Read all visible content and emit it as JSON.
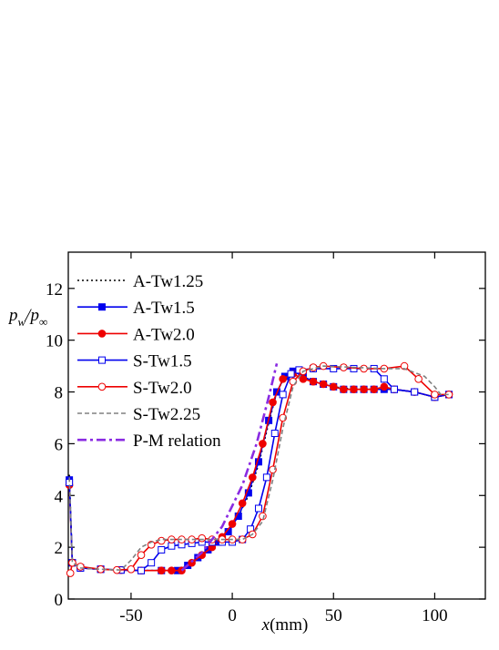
{
  "chart_data": {
    "type": "line",
    "x_label": [
      "x",
      "(mm)"
    ],
    "y_label": [
      "p",
      "w",
      "/p",
      "∞"
    ],
    "xlim": [
      -81,
      125
    ],
    "ylim": [
      0,
      13.4
    ],
    "xticks": [
      -50,
      0,
      50,
      100
    ],
    "yticks": [
      0,
      2,
      4,
      6,
      8,
      10,
      12
    ],
    "legend": "upper-left",
    "series": [
      {
        "name": "A-Tw1.25",
        "color": "#000000",
        "dash": "dot",
        "marker": null,
        "x": [
          -80.5,
          -79,
          -75,
          -65,
          -50,
          -35,
          -27,
          -22,
          -17,
          -12,
          -7,
          -2,
          3,
          8,
          13,
          18,
          22,
          26,
          30,
          35,
          40,
          50,
          60,
          70,
          80,
          90,
          100,
          107
        ],
        "values": [
          4.8,
          1.4,
          1.2,
          1.15,
          1.1,
          1.1,
          1.1,
          1.3,
          1.6,
          1.9,
          2.2,
          2.6,
          3.2,
          4.0,
          5.2,
          6.8,
          8.0,
          8.6,
          8.8,
          8.6,
          8.4,
          8.2,
          8.1,
          8.1,
          8.1,
          8.0,
          7.8,
          7.9
        ]
      },
      {
        "name": "A-Tw1.5",
        "color": "#0000ee",
        "dash": "solid",
        "marker": "square-filled",
        "x": [
          -80.5,
          -79,
          -75,
          -65,
          -55,
          -45,
          -35,
          -27,
          -22,
          -17,
          -12,
          -7,
          -2,
          3,
          8,
          13,
          18,
          22,
          26,
          30,
          35,
          40,
          45,
          50,
          55,
          60,
          65,
          70,
          75,
          80,
          90,
          100,
          107
        ],
        "values": [
          4.6,
          1.4,
          1.2,
          1.15,
          1.12,
          1.1,
          1.1,
          1.1,
          1.3,
          1.6,
          1.9,
          2.2,
          2.6,
          3.2,
          4.1,
          5.3,
          6.9,
          8.0,
          8.6,
          8.8,
          8.6,
          8.4,
          8.3,
          8.2,
          8.1,
          8.1,
          8.1,
          8.1,
          8.1,
          8.1,
          8.0,
          7.8,
          7.9
        ]
      },
      {
        "name": "A-Tw2.0",
        "color": "#ee0000",
        "dash": "solid",
        "marker": "circle-filled",
        "x": [
          -80.5,
          -79,
          -75,
          -65,
          -55,
          -45,
          -35,
          -30,
          -25,
          -20,
          -15,
          -10,
          -5,
          0,
          5,
          10,
          15,
          20,
          25,
          30,
          35,
          40,
          45,
          50,
          55,
          60,
          65,
          70,
          75,
          80,
          90,
          100,
          107
        ],
        "values": [
          4.4,
          1.4,
          1.2,
          1.15,
          1.12,
          1.1,
          1.1,
          1.1,
          1.1,
          1.4,
          1.7,
          2.0,
          2.4,
          2.9,
          3.7,
          4.7,
          6.0,
          7.6,
          8.5,
          8.7,
          8.5,
          8.4,
          8.3,
          8.2,
          8.1,
          8.1,
          8.1,
          8.1,
          8.2,
          8.1,
          8.0,
          7.8,
          7.9
        ]
      },
      {
        "name": "S-Tw1.5",
        "color": "#0000ee",
        "dash": "solid",
        "marker": "square-open",
        "x": [
          -80.5,
          -79,
          -75,
          -65,
          -55,
          -45,
          -40,
          -35,
          -30,
          -25,
          -20,
          -15,
          -10,
          -5,
          0,
          5,
          9,
          13,
          17,
          21,
          25,
          29,
          33,
          40,
          50,
          60,
          70,
          75,
          80,
          90,
          100,
          107
        ],
        "values": [
          4.5,
          1.4,
          1.2,
          1.15,
          1.12,
          1.1,
          1.4,
          1.9,
          2.05,
          2.1,
          2.15,
          2.2,
          2.2,
          2.2,
          2.2,
          2.3,
          2.7,
          3.5,
          4.7,
          6.4,
          7.9,
          8.7,
          8.85,
          8.9,
          8.9,
          8.9,
          8.9,
          8.5,
          8.1,
          8.0,
          7.8,
          7.9
        ]
      },
      {
        "name": "S-Tw2.0",
        "color": "#ee0000",
        "dash": "solid",
        "marker": "circle-open",
        "x": [
          -80,
          -79,
          -75,
          -65,
          -57,
          -50,
          -45,
          -40,
          -35,
          -30,
          -25,
          -20,
          -15,
          -10,
          -5,
          0,
          5,
          10,
          15,
          20,
          25,
          30,
          35,
          40,
          45,
          55,
          65,
          75,
          85,
          92,
          100,
          107
        ],
        "values": [
          1.0,
          1.4,
          1.25,
          1.15,
          1.12,
          1.15,
          1.7,
          2.1,
          2.25,
          2.3,
          2.3,
          2.3,
          2.35,
          2.3,
          2.3,
          2.3,
          2.3,
          2.5,
          3.2,
          5.0,
          7.0,
          8.4,
          8.8,
          8.95,
          9.0,
          8.95,
          8.9,
          8.9,
          9.0,
          8.5,
          7.9,
          7.9
        ]
      },
      {
        "name": "S-Tw2.25",
        "color": "#808080",
        "dash": "dash",
        "marker": null,
        "x": [
          -80.5,
          -79,
          -75,
          -65,
          -55,
          -50,
          -45,
          -40,
          -35,
          -20,
          -5,
          5,
          10,
          15,
          20,
          25,
          30,
          35,
          45,
          60,
          75,
          85,
          95,
          100,
          103,
          107
        ],
        "values": [
          4.7,
          1.4,
          1.2,
          1.15,
          1.12,
          1.5,
          2.0,
          2.2,
          2.3,
          2.3,
          2.3,
          2.3,
          2.5,
          3.0,
          4.6,
          6.6,
          8.2,
          8.8,
          9.0,
          8.95,
          8.9,
          8.9,
          8.6,
          8.2,
          7.9,
          7.9
        ]
      },
      {
        "name": "P-M relation",
        "color": "#8a2be2",
        "dash": "dashdot",
        "marker": null,
        "x": [
          -25,
          -15,
          -5,
          5,
          12,
          18,
          22
        ],
        "values": [
          1.1,
          1.8,
          2.8,
          4.4,
          6.0,
          7.8,
          9.1
        ]
      }
    ]
  }
}
